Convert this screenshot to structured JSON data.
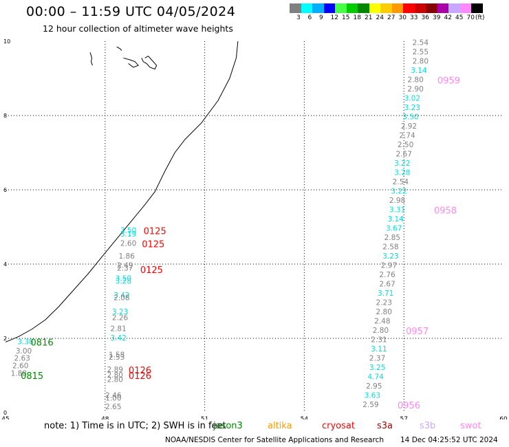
{
  "header": {
    "title": "00:00 – 11:59 UTC 04/05/2024",
    "subtitle": "12 hour collection of altimeter wave heights"
  },
  "colorbar": {
    "colors": [
      "#808080",
      "#00ffff",
      "#00b0ff",
      "#0000ff",
      "#44ff44",
      "#00cc00",
      "#008800",
      "#ffff00",
      "#ffcc00",
      "#ff9900",
      "#ff0000",
      "#cc0000",
      "#880000",
      "#aa00aa",
      "#c8a8ff",
      "#ff88ff",
      "#000000"
    ],
    "labels": [
      "3",
      "6",
      "9",
      "12",
      "15",
      "18",
      "21",
      "24",
      "27",
      "30",
      "33",
      "36",
      "39",
      "42",
      "45",
      "70",
      "(ft)"
    ]
  },
  "axes": {
    "x_ticks": [
      "45",
      "48",
      "51",
      "54",
      "57",
      "60"
    ],
    "y_ticks": [
      "0",
      "2",
      "4",
      "6",
      "8",
      "10"
    ],
    "xlim": [
      45,
      60
    ],
    "ylim": [
      0,
      10
    ]
  },
  "chart_data": {
    "type": "scatter",
    "unit": "ft",
    "observations": [
      {
        "x": 57.5,
        "y": 9.95,
        "text": "2.54",
        "color": "#808080"
      },
      {
        "x": 57.5,
        "y": 9.7,
        "text": "2.55",
        "color": "#808080"
      },
      {
        "x": 57.5,
        "y": 9.45,
        "text": "2.80",
        "color": "#808080"
      },
      {
        "x": 57.45,
        "y": 9.2,
        "text": "3.14",
        "color": "#00dddd"
      },
      {
        "x": 57.35,
        "y": 8.95,
        "text": "2.80",
        "color": "#808080"
      },
      {
        "x": 57.35,
        "y": 8.7,
        "text": "2.90",
        "color": "#808080"
      },
      {
        "x": 57.25,
        "y": 8.45,
        "text": "3.02",
        "color": "#00dddd"
      },
      {
        "x": 57.25,
        "y": 8.2,
        "text": "3.23",
        "color": "#00dddd"
      },
      {
        "x": 57.2,
        "y": 7.95,
        "text": "3.50",
        "color": "#00dddd"
      },
      {
        "x": 57.15,
        "y": 7.7,
        "text": "2.92",
        "color": "#808080"
      },
      {
        "x": 57.1,
        "y": 7.45,
        "text": "2.74",
        "color": "#808080"
      },
      {
        "x": 57.05,
        "y": 7.2,
        "text": "2.50",
        "color": "#808080"
      },
      {
        "x": 57.0,
        "y": 6.95,
        "text": "2.67",
        "color": "#808080"
      },
      {
        "x": 56.95,
        "y": 6.7,
        "text": "3.22",
        "color": "#00dddd"
      },
      {
        "x": 56.95,
        "y": 6.45,
        "text": "3.28",
        "color": "#00dddd"
      },
      {
        "x": 56.9,
        "y": 6.2,
        "text": "2.54",
        "color": "#808080"
      },
      {
        "x": 56.85,
        "y": 5.95,
        "text": "3.22",
        "color": "#00dddd"
      },
      {
        "x": 56.8,
        "y": 5.7,
        "text": "2.98",
        "color": "#808080"
      },
      {
        "x": 56.8,
        "y": 5.45,
        "text": "3.31",
        "color": "#00dddd"
      },
      {
        "x": 56.75,
        "y": 5.2,
        "text": "3.14",
        "color": "#00dddd"
      },
      {
        "x": 56.7,
        "y": 4.95,
        "text": "3.67",
        "color": "#00dddd"
      },
      {
        "x": 56.65,
        "y": 4.7,
        "text": "2.85",
        "color": "#808080"
      },
      {
        "x": 56.6,
        "y": 4.45,
        "text": "2.58",
        "color": "#808080"
      },
      {
        "x": 56.6,
        "y": 4.2,
        "text": "3.23",
        "color": "#00dddd"
      },
      {
        "x": 56.55,
        "y": 3.95,
        "text": "2.97",
        "color": "#808080"
      },
      {
        "x": 56.5,
        "y": 3.7,
        "text": "2.76",
        "color": "#808080"
      },
      {
        "x": 56.5,
        "y": 3.45,
        "text": "2.67",
        "color": "#808080"
      },
      {
        "x": 56.45,
        "y": 3.2,
        "text": "3.71",
        "color": "#00dddd"
      },
      {
        "x": 56.4,
        "y": 2.95,
        "text": "2.23",
        "color": "#808080"
      },
      {
        "x": 56.4,
        "y": 2.7,
        "text": "2.80",
        "color": "#808080"
      },
      {
        "x": 56.35,
        "y": 2.45,
        "text": "2.48",
        "color": "#808080"
      },
      {
        "x": 56.3,
        "y": 2.2,
        "text": "2.80",
        "color": "#808080"
      },
      {
        "x": 56.25,
        "y": 1.95,
        "text": "2.31",
        "color": "#808080"
      },
      {
        "x": 56.25,
        "y": 1.7,
        "text": "3.11",
        "color": "#00dddd"
      },
      {
        "x": 56.2,
        "y": 1.45,
        "text": "2.37",
        "color": "#808080"
      },
      {
        "x": 56.2,
        "y": 1.2,
        "text": "3.25",
        "color": "#00dddd"
      },
      {
        "x": 56.15,
        "y": 0.95,
        "text": "4.74",
        "color": "#00dddd"
      },
      {
        "x": 56.1,
        "y": 0.7,
        "text": "2.95",
        "color": "#808080"
      },
      {
        "x": 56.05,
        "y": 0.45,
        "text": "3.63",
        "color": "#00dddd"
      },
      {
        "x": 56.0,
        "y": 0.2,
        "text": "2.59",
        "color": "#808080"
      },
      {
        "x": 48.7,
        "y": 4.9,
        "text": "3.50",
        "color": "#00dddd"
      },
      {
        "x": 48.7,
        "y": 4.8,
        "text": "3.19",
        "color": "#00dddd"
      },
      {
        "x": 48.7,
        "y": 4.55,
        "text": "2.60",
        "color": "#808080"
      },
      {
        "x": 48.65,
        "y": 4.2,
        "text": "1.86",
        "color": "#808080"
      },
      {
        "x": 48.6,
        "y": 3.95,
        "text": "2.49",
        "color": "#808080"
      },
      {
        "x": 48.6,
        "y": 3.88,
        "text": "2.37",
        "color": "#808080"
      },
      {
        "x": 48.55,
        "y": 3.6,
        "text": "3.50",
        "color": "#00dddd"
      },
      {
        "x": 48.55,
        "y": 3.53,
        "text": "3.28",
        "color": "#00dddd"
      },
      {
        "x": 48.5,
        "y": 3.15,
        "text": "3.42",
        "color": "#00dddd"
      },
      {
        "x": 48.5,
        "y": 3.08,
        "text": "2.08",
        "color": "#808080"
      },
      {
        "x": 48.45,
        "y": 2.7,
        "text": "3.23",
        "color": "#00dddd"
      },
      {
        "x": 48.45,
        "y": 2.55,
        "text": "2.26",
        "color": "#808080"
      },
      {
        "x": 48.4,
        "y": 2.25,
        "text": "2.81",
        "color": "#808080"
      },
      {
        "x": 48.4,
        "y": 2.0,
        "text": "3.42",
        "color": "#00dddd"
      },
      {
        "x": 48.35,
        "y": 1.55,
        "text": "1.58",
        "color": "#808080"
      },
      {
        "x": 48.35,
        "y": 1.48,
        "text": "2.53",
        "color": "#808080"
      },
      {
        "x": 48.3,
        "y": 1.15,
        "text": "2.89",
        "color": "#808080"
      },
      {
        "x": 48.3,
        "y": 1.0,
        "text": "2.80",
        "color": "#808080"
      },
      {
        "x": 48.3,
        "y": 0.88,
        "text": "2.80",
        "color": "#808080"
      },
      {
        "x": 48.25,
        "y": 0.45,
        "text": "2.46",
        "color": "#808080"
      },
      {
        "x": 48.25,
        "y": 0.38,
        "text": "1.00",
        "color": "#808080"
      },
      {
        "x": 48.25,
        "y": 0.15,
        "text": "2.65",
        "color": "#808080"
      },
      {
        "x": 45.6,
        "y": 1.9,
        "text": "3.38",
        "color": "#00dddd"
      },
      {
        "x": 45.55,
        "y": 1.65,
        "text": "3.00",
        "color": "#808080"
      },
      {
        "x": 45.5,
        "y": 1.45,
        "text": "2.63",
        "color": "#808080"
      },
      {
        "x": 45.45,
        "y": 1.25,
        "text": "2.60",
        "color": "#808080"
      },
      {
        "x": 45.4,
        "y": 1.05,
        "text": "1.88",
        "color": "#808080"
      }
    ],
    "pass_times": [
      {
        "x": 49.5,
        "y": 4.9,
        "text": "0125",
        "color": "#ff0000"
      },
      {
        "x": 49.45,
        "y": 4.55,
        "text": "0125",
        "color": "#ff0000"
      },
      {
        "x": 49.4,
        "y": 3.85,
        "text": "0125",
        "color": "#ff0000"
      },
      {
        "x": 49.05,
        "y": 1.15,
        "text": "0126",
        "color": "#ff0000"
      },
      {
        "x": 49.05,
        "y": 1.0,
        "text": "0126",
        "color": "#ff0000"
      },
      {
        "x": 46.1,
        "y": 1.9,
        "text": "0816",
        "color": "#008800"
      },
      {
        "x": 45.8,
        "y": 1.0,
        "text": "0815",
        "color": "#008800"
      },
      {
        "x": 58.35,
        "y": 8.95,
        "text": "0959",
        "color": "#ff88ee"
      },
      {
        "x": 58.25,
        "y": 5.45,
        "text": "0958",
        "color": "#ff88ee"
      },
      {
        "x": 57.4,
        "y": 2.2,
        "text": "0957",
        "color": "#ff88ee"
      },
      {
        "x": 57.15,
        "y": 0.2,
        "text": "0956",
        "color": "#ff88ee"
      }
    ],
    "coastline": [
      [
        45.0,
        1.9
      ],
      [
        45.4,
        2.05
      ],
      [
        45.8,
        2.25
      ],
      [
        46.2,
        2.5
      ],
      [
        46.6,
        2.85
      ],
      [
        47.0,
        3.25
      ],
      [
        47.5,
        3.75
      ],
      [
        48.0,
        4.3
      ],
      [
        48.6,
        4.95
      ],
      [
        49.2,
        5.6
      ],
      [
        49.5,
        5.95
      ],
      [
        49.8,
        6.5
      ],
      [
        50.1,
        7.0
      ],
      [
        50.4,
        7.35
      ],
      [
        50.9,
        7.8
      ],
      [
        51.4,
        8.4
      ],
      [
        51.75,
        9.0
      ],
      [
        51.95,
        9.55
      ],
      [
        52.0,
        10.0
      ]
    ],
    "islands": [
      [
        [
          47.55,
          9.7
        ],
        [
          47.6,
          9.55
        ],
        [
          47.58,
          9.45
        ],
        [
          47.62,
          9.35
        ]
      ],
      [
        [
          48.35,
          9.85
        ],
        [
          48.45,
          9.8
        ],
        [
          48.5,
          9.75
        ]
      ],
      [
        [
          48.55,
          9.55
        ],
        [
          48.75,
          9.5
        ],
        [
          48.9,
          9.45
        ],
        [
          49.0,
          9.35
        ],
        [
          48.85,
          9.3
        ],
        [
          48.7,
          9.4
        ]
      ],
      [
        [
          49.1,
          9.55
        ],
        [
          49.15,
          9.45
        ],
        [
          49.25,
          9.4
        ],
        [
          49.35,
          9.3
        ],
        [
          49.5,
          9.25
        ],
        [
          49.55,
          9.35
        ],
        [
          49.4,
          9.5
        ],
        [
          49.3,
          9.6
        ],
        [
          49.2,
          9.55
        ]
      ]
    ]
  },
  "footer": {
    "note": "note: 1) Time is in UTC; 2) SWH is in feet",
    "satellites": [
      {
        "name": "jason3",
        "color": "#008800"
      },
      {
        "name": "altika",
        "color": "#ff9900"
      },
      {
        "name": "cryosat",
        "color": "#ff0000"
      },
      {
        "name": "s3a",
        "color": "#aa0000"
      },
      {
        "name": "s3b",
        "color": "#c8a8ff"
      },
      {
        "name": "swot",
        "color": "#ff88ee"
      }
    ],
    "credit": "NOAA/NESDIS Center for Satellite Applications and Research",
    "timestamp": "14 Dec 04:25:52 UTC 2024"
  }
}
